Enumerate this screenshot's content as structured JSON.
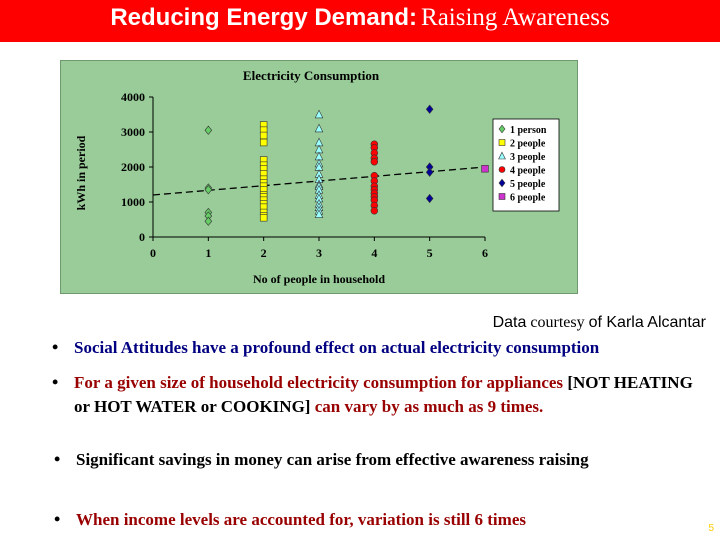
{
  "slide": {
    "title_part1": "Reducing Energy Demand:",
    "title_part2": "Raising Awareness",
    "credit_part1": "Data",
    "credit_part2": "courtesy",
    "credit_part3": "of Karla Alcantar",
    "bullets": [
      "Social Attitudes have a profound effect on actual electricity consumption",
      "For a given size of household electricity consumption for appliances",
      "[NOT HEATING or HOT WATER or COOKING]",
      "can vary by as much as 9 times.",
      "Significant savings in money can arise from effective awareness raising",
      "When income levels are accounted for,  variation is still 6 times"
    ],
    "page_number": "5",
    "colors": {
      "title_bar": "#ff0000",
      "chart_panel": "#99cc99",
      "bullet_blue": "#000080",
      "bullet_red": "#990000"
    }
  },
  "chart_data": {
    "type": "scatter",
    "title": "Electricity Consumption",
    "xlabel": "No of people in household",
    "ylabel": "kWh in period",
    "xlim": [
      0,
      6
    ],
    "ylim": [
      0,
      4000
    ],
    "xticks": [
      0,
      1,
      2,
      3,
      4,
      5,
      6
    ],
    "yticks": [
      0,
      1000,
      2000,
      3000,
      4000
    ],
    "grid": false,
    "legend_position": "right",
    "trendline": {
      "style": "dashed",
      "points": [
        [
          0,
          1200
        ],
        [
          6,
          2000
        ]
      ]
    },
    "series": [
      {
        "name": "1 person",
        "marker": "diamond",
        "color": "#66cc66",
        "x": [
          1,
          1,
          1,
          1,
          1,
          1
        ],
        "y": [
          3050,
          1400,
          1350,
          700,
          600,
          450
        ]
      },
      {
        "name": "2 people",
        "marker": "square",
        "color": "#ffff00",
        "x": [
          2,
          2,
          2,
          2,
          2,
          2,
          2,
          2,
          2,
          2,
          2,
          2,
          2,
          2,
          2,
          2,
          2,
          2,
          2,
          2
        ],
        "y": [
          3200,
          3050,
          2900,
          2700,
          2200,
          2050,
          1950,
          1800,
          1650,
          1550,
          1450,
          1350,
          1200,
          1150,
          1050,
          950,
          850,
          700,
          600,
          550
        ]
      },
      {
        "name": "3 people",
        "marker": "triangle",
        "color": "#99ffff",
        "x": [
          3,
          3,
          3,
          3,
          3,
          3,
          3,
          3,
          3,
          3,
          3,
          3,
          3,
          3,
          3,
          3,
          3,
          3
        ],
        "y": [
          3500,
          3100,
          2700,
          2500,
          2300,
          2100,
          2000,
          1800,
          1650,
          1500,
          1450,
          1350,
          1200,
          1100,
          950,
          850,
          750,
          650
        ]
      },
      {
        "name": "4 people",
        "marker": "circle",
        "color": "#ff0000",
        "x": [
          4,
          4,
          4,
          4,
          4,
          4,
          4,
          4,
          4,
          4,
          4,
          4,
          4,
          4
        ],
        "y": [
          2650,
          2550,
          2400,
          2250,
          2150,
          1750,
          1600,
          1450,
          1350,
          1250,
          1150,
          1050,
          900,
          750
        ]
      },
      {
        "name": "5 people",
        "marker": "diamond",
        "color": "#000099",
        "x": [
          5,
          5,
          5,
          5
        ],
        "y": [
          3650,
          2000,
          1850,
          1100
        ]
      },
      {
        "name": "6 people",
        "marker": "square",
        "color": "#cc33cc",
        "x": [
          6
        ],
        "y": [
          1950
        ]
      }
    ]
  }
}
